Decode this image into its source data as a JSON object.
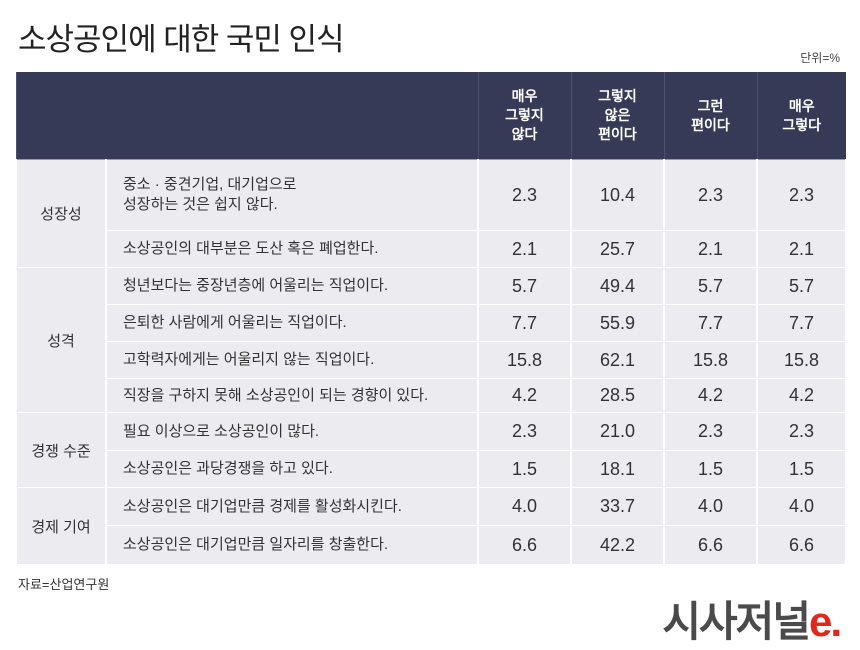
{
  "title": "소상공인에 대한 국민 인식",
  "unit": "단위=%",
  "table": {
    "columns": [
      "매우\n그렇지\n않다",
      "그렇지\n않은\n편이다",
      "그런\n편이다",
      "매우\n그렇다"
    ],
    "groups": [
      {
        "label": "성장성",
        "rows": [
          {
            "item": "중소 · 중견기업, 대기업으로\n성장하는 것은 쉽지 않다.",
            "values": [
              "2.3",
              "10.4",
              "2.3",
              "2.3"
            ]
          },
          {
            "item": "소상공인의 대부분은 도산 혹은 폐업한다.",
            "values": [
              "2.1",
              "25.7",
              "2.1",
              "2.1"
            ]
          }
        ]
      },
      {
        "label": "성격",
        "rows": [
          {
            "item": "청년보다는 중장년층에 어울리는 직업이다.",
            "values": [
              "5.7",
              "49.4",
              "5.7",
              "5.7"
            ]
          },
          {
            "item": "은퇴한 사람에게 어울리는 직업이다.",
            "values": [
              "7.7",
              "55.9",
              "7.7",
              "7.7"
            ]
          },
          {
            "item": "고학력자에게는 어울리지 않는 직업이다.",
            "values": [
              "15.8",
              "62.1",
              "15.8",
              "15.8"
            ]
          },
          {
            "item": "직장을 구하지 못해 소상공인이 되는 경향이 있다.",
            "values": [
              "4.2",
              "28.5",
              "4.2",
              "4.2"
            ]
          }
        ]
      },
      {
        "label": "경쟁 수준",
        "rows": [
          {
            "item": "필요 이상으로 소상공인이 많다.",
            "values": [
              "2.3",
              "21.0",
              "2.3",
              "2.3"
            ]
          },
          {
            "item": "소상공인은 과당경쟁을 하고 있다.",
            "values": [
              "1.5",
              "18.1",
              "1.5",
              "1.5"
            ]
          }
        ]
      },
      {
        "label": "경제 기여",
        "rows": [
          {
            "item": "소상공인은 대기업만큼 경제를 활성화시킨다.",
            "values": [
              "4.0",
              "33.7",
              "4.0",
              "4.0"
            ]
          },
          {
            "item": "소상공인은 대기업만큼 일자리를 창출한다.",
            "values": [
              "6.6",
              "42.2",
              "6.6",
              "6.6"
            ]
          }
        ]
      }
    ]
  },
  "source": "자료=산업연구원",
  "logo": {
    "main": "시사저널",
    "accent": "e."
  }
}
